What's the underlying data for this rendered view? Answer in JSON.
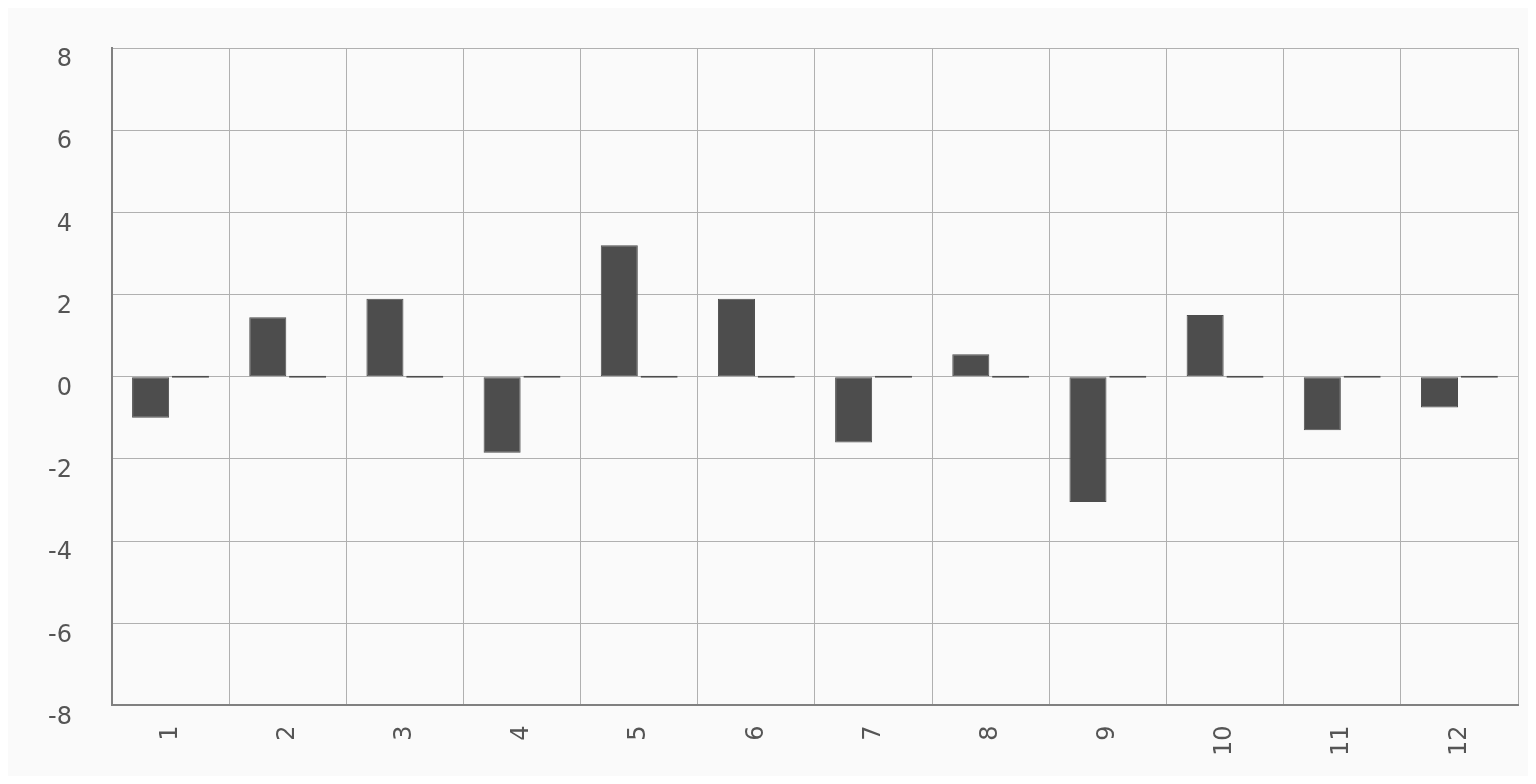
{
  "chart_data": {
    "type": "bar",
    "categories": [
      "1",
      "2",
      "3",
      "4",
      "5",
      "6",
      "7",
      "8",
      "9",
      "10",
      "11",
      "12"
    ],
    "series": [
      {
        "color": "#4d4d4d",
        "values": [
          -1.0,
          1.45,
          1.9,
          -1.85,
          3.2,
          1.9,
          -1.6,
          0.55,
          -3.05,
          1.5,
          -1.3,
          -0.75
        ]
      },
      {
        "color": "#4d4d4d",
        "values": [
          0,
          0,
          0,
          0,
          0,
          0,
          0,
          0,
          0,
          0,
          0,
          0
        ]
      }
    ],
    "ylim": [
      -8,
      8
    ],
    "yticks": [
      -8,
      -6,
      -4,
      -2,
      0,
      2,
      4,
      6,
      8
    ],
    "grid": true,
    "legend": false
  }
}
